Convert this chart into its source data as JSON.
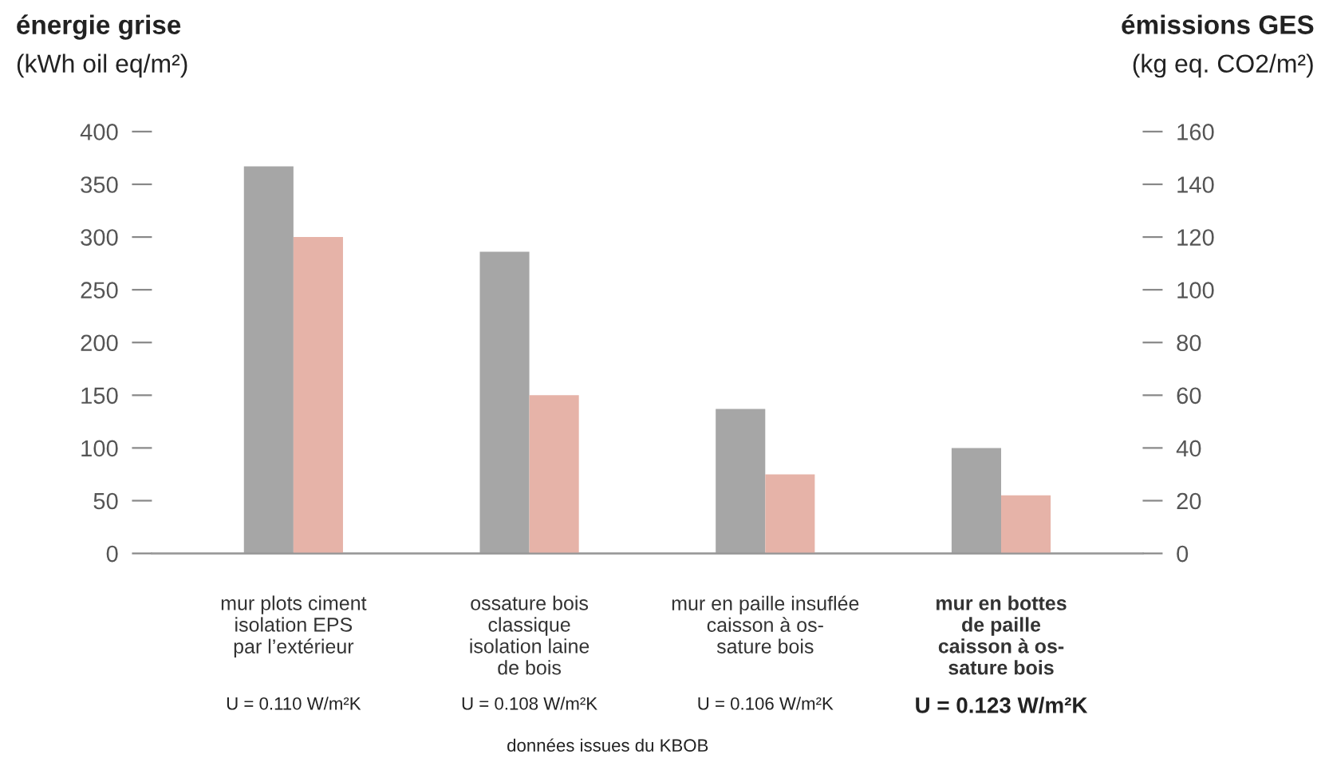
{
  "chart_data": {
    "type": "bar",
    "ylabel": "énergie grise\n(kWh oil eq/m²)",
    "y2label": "émissions GES\n(kg eq. CO2/m²)",
    "categories": [
      "mur plots ciment\nisolation EPS\npar l’extérieur",
      "ossature bois\nclassique\nisolation laine\nde bois",
      "mur en paille insuflée\ncaisson à os-\nsature bois",
      "mur en bottes\nde paille\ncaisson à os-\nsature bois"
    ],
    "series": [
      {
        "color": "#a6a6a6",
        "values": [
          367,
          286,
          137,
          100
        ]
      },
      {
        "color": "#e6b3a8",
        "values": [
          120,
          60,
          30,
          22
        ],
        "axis": "y2"
      }
    ],
    "ylim": [
      0,
      400
    ],
    "yticks": [
      0,
      50,
      100,
      150,
      200,
      250,
      300,
      350,
      400
    ],
    "y2lim": [
      0,
      160
    ],
    "y2ticks": [
      0,
      20,
      40,
      60,
      80,
      100,
      120,
      140,
      160
    ],
    "grid": false,
    "legend": false,
    "annotations": [
      "U = 0.110 W/m²K",
      "U = 0.108 W/m²K",
      "U = 0.106 W/m²K",
      "U = 0.123 W/m²K",
      "données issues du KBOB"
    ]
  }
}
